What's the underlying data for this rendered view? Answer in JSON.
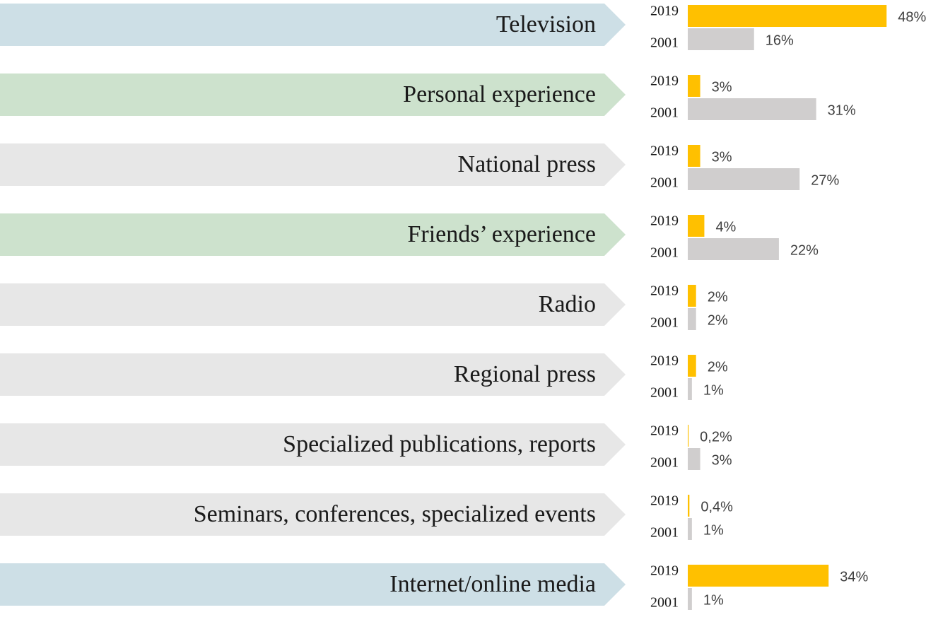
{
  "chart_data": {
    "type": "bar",
    "categories": [
      "Television",
      "Personal experience",
      "National press",
      "Friends’ experience",
      "Radio",
      "Regional press",
      "Specialized publications, reports",
      "Seminars, conferences, specialized events",
      "Internet/online media"
    ],
    "category_colors": [
      "#cddfe6",
      "#cde2cd",
      "#e7e7e7",
      "#cde2cd",
      "#e7e7e7",
      "#e7e7e7",
      "#e7e7e7",
      "#e7e7e7",
      "#cddfe6"
    ],
    "series": [
      {
        "name": "2019",
        "color": "#ffc000",
        "values": [
          48,
          3,
          3,
          4,
          2,
          2,
          0.2,
          0.4,
          34
        ],
        "value_labels": [
          "48%",
          "3%",
          "3%",
          "4%",
          "2%",
          "2%",
          "0,2%",
          "0,4%",
          "34%"
        ]
      },
      {
        "name": "2001",
        "color": "#d0cece",
        "values": [
          16,
          31,
          27,
          22,
          2,
          1,
          3,
          1,
          1
        ],
        "value_labels": [
          "16%",
          "31%",
          "27%",
          "22%",
          "2%",
          "1%",
          "3%",
          "1%",
          "1%"
        ]
      }
    ]
  }
}
